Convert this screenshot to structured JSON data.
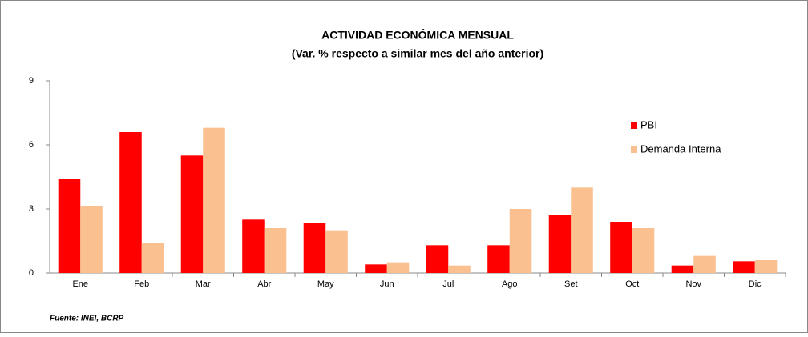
{
  "chart_data": {
    "type": "bar",
    "title": "ACTIVIDAD ECONÓMICA MENSUAL",
    "subtitle": "(Var. % respecto a similar  mes del año anterior)",
    "source": "Fuente: INEI, BCRP",
    "categories": [
      "Ene",
      "Feb",
      "Mar",
      "Abr",
      "May",
      "Jun",
      "Jul",
      "Ago",
      "Set",
      "Oct",
      "Nov",
      "Dic"
    ],
    "series": [
      {
        "name": "PBI",
        "color": "#ff0000",
        "values": [
          4.4,
          6.6,
          5.5,
          2.5,
          2.35,
          0.4,
          1.3,
          1.3,
          2.7,
          2.4,
          0.35,
          0.55
        ]
      },
      {
        "name": "Demanda Interna",
        "color": "#fac090",
        "values": [
          3.15,
          1.4,
          6.8,
          2.1,
          2.0,
          0.5,
          0.35,
          3.0,
          4.0,
          2.1,
          0.8,
          0.6
        ]
      }
    ],
    "ylim": [
      0,
      9
    ],
    "yticks": [
      0,
      3,
      6,
      9
    ],
    "grid": false,
    "legend": "upper right"
  }
}
